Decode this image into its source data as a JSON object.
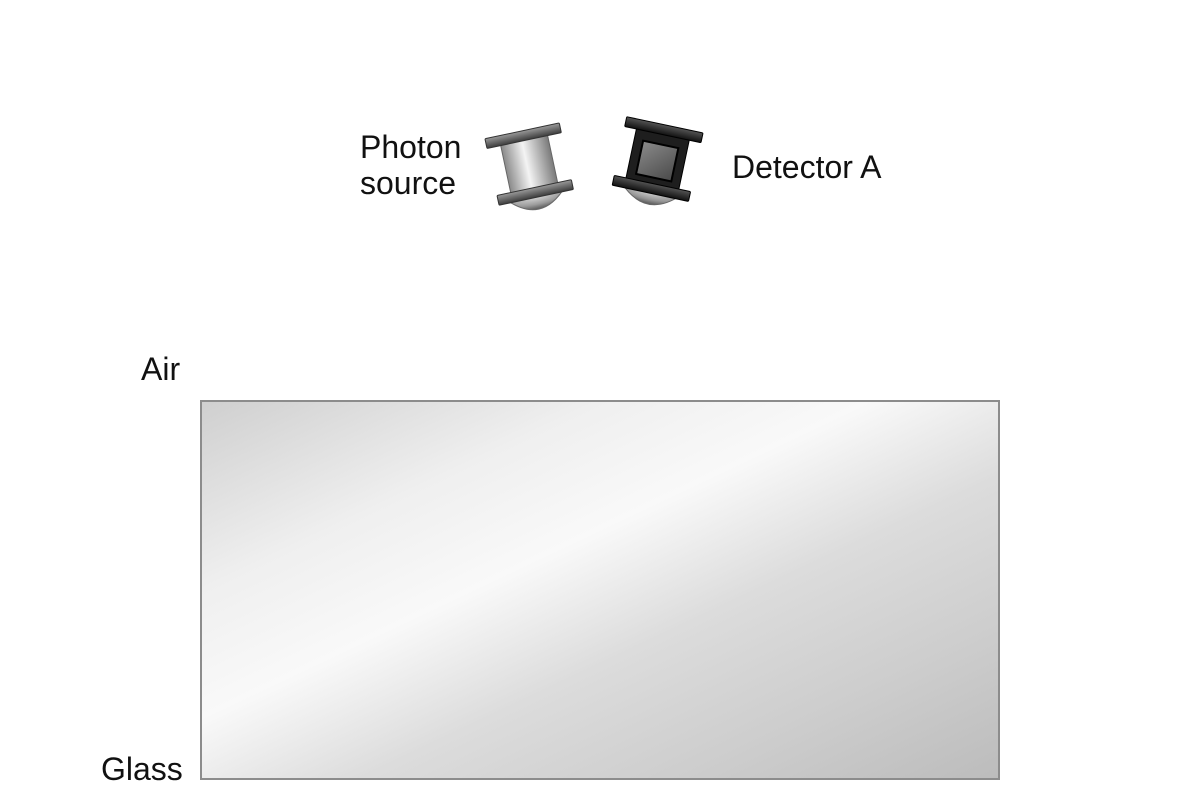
{
  "photon_source": {
    "label_line1": "Photon",
    "label_line2": "source"
  },
  "detector": {
    "label": "Detector A"
  },
  "media": {
    "upper": "Air",
    "lower": "Glass"
  },
  "colors": {
    "background": "#ffffff",
    "text": "#111111",
    "glass_border": "#8c8c8c",
    "glass_light": "#f2f2f2",
    "glass_dark": "#bdbdbd",
    "device_dark": "#2a2a2a"
  }
}
